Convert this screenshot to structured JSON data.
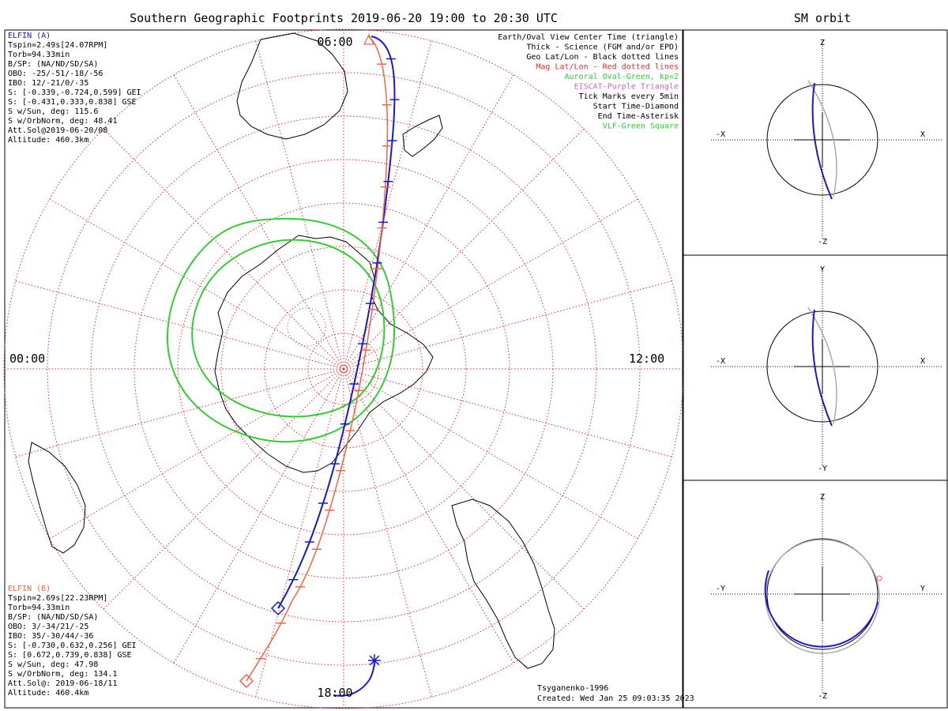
{
  "title": "Southern Geographic Footprints 2019-06-20 19:00 to 20:30 UTC",
  "sm_title": "SM orbit",
  "colors": {
    "elfin_a": "#1a1acc",
    "elfin_b": "#ee6644",
    "oval": "#33cc33",
    "mag_grid": "#e03030",
    "geo_grid": "#555555",
    "eiscat": "#cc66cc",
    "sm_other": "#aaaaaa"
  },
  "elfin_a": {
    "name": "ELFIN (A)",
    "lines": [
      "Tspin=2.49s[24.07RPM]",
      "Torb=94.33min",
      "B/SP: (NA/ND/SD/SA)",
      "OBO: -25/-51/-18/-56",
      "IBO: 12/-21/0/-35",
      "S: [-0.339,-0.724,0.599] GEI",
      "S: [-0.431,0.333,0.838] GSE",
      "S w/Sun, deg: 115.6",
      "S w/OrbNorm, deg: 48.41",
      "Att.Sol@2019-06-20/08",
      "Altitude: 460.3km"
    ]
  },
  "elfin_b": {
    "name": "ELFIN (B)",
    "lines": [
      "Tspin=2.69s[22.23RPM]",
      "Torb=94.33min",
      "B/SP: (NA/ND/SD/SA)",
      "OBO: 3/-34/21/-25",
      "IBO: 35/-30/44/-36",
      "S: [-0.730,0.632,0.256] GEI",
      "S: [0.672,0.739,0.838] GSE",
      "S w/Sun, deg: 47.98",
      "S w/OrbNorm, deg: 134.1",
      "Att.Sol@: 2019-06-18/11",
      "Altitude: 460.4km"
    ]
  },
  "legend": [
    {
      "text": "Earth/Oval View Center Time (triangle)",
      "color": "#000000"
    },
    {
      "text": "Thick - Science (FGM and/or EPD)",
      "color": "#000000"
    },
    {
      "text": "Geo Lat/Lon - Black dotted lines",
      "color": "#000000"
    },
    {
      "text": "Mag Lat/Lon - Red dotted lines",
      "color": "#e03030"
    },
    {
      "text": "Auroral Oval-Green, kp=2",
      "color": "#33cc33"
    },
    {
      "text": "EISCAT-Purple Triangle",
      "color": "#cc66cc"
    },
    {
      "text": "Tick Marks every 5min",
      "color": "#000000"
    },
    {
      "text": "Start Time-Diamond",
      "color": "#000000"
    },
    {
      "text": "End Time-Asterisk",
      "color": "#000000"
    },
    {
      "text": "VLF-Green Square",
      "color": "#33cc33"
    }
  ],
  "map_labels": {
    "top": "06:00",
    "left": "00:00",
    "right": "12:00",
    "bottom": "18:00"
  },
  "credit": {
    "model": "Tsyganenko-1996",
    "created": "Created: Wed Jan 25 09:03:35 2023"
  },
  "sm_panels": [
    {
      "up": "Z",
      "down": "-Z",
      "left": "-X",
      "right": "X"
    },
    {
      "up": "Y",
      "down": "-Y",
      "left": "-X",
      "right": "X"
    },
    {
      "up": "Z",
      "down": "-Z",
      "left": "-Y",
      "right": "Y"
    }
  ],
  "chart_data": {
    "type": "scatter",
    "title": "Southern Geographic Footprints 2019-06-20 19:00 to 20:30 UTC",
    "projection": "south polar, magnetic local time clock",
    "clock_labels": [
      "06:00",
      "12:00",
      "18:00",
      "00:00"
    ],
    "mag_lat_circles_deg": [
      -80,
      -70,
      -60,
      -50,
      -40,
      -30,
      -20,
      -10
    ],
    "series": [
      {
        "name": "ELFIN (A)",
        "start": "diamond",
        "end": "asterisk",
        "tick_interval": "5min"
      },
      {
        "name": "ELFIN (B)",
        "start": "diamond",
        "end": "asterisk",
        "tick_interval": "5min"
      }
    ],
    "auroral_oval_kp": 2,
    "legend_position": "top-right",
    "grid": true
  }
}
